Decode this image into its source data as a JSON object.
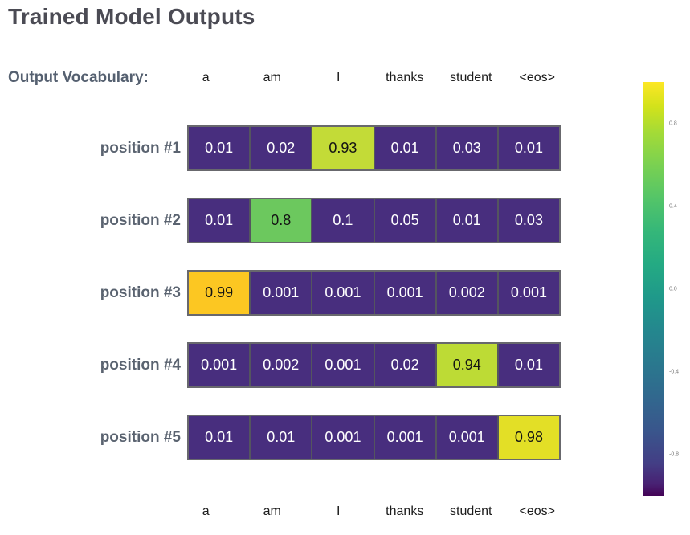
{
  "title": "Trained Model Outputs",
  "output_vocabulary_label": "Output Vocabulary:",
  "chart_data": {
    "type": "heatmap",
    "title": "Trained Model Outputs",
    "columns": [
      "a",
      "am",
      "I",
      "thanks",
      "student",
      "<eos>"
    ],
    "column_labels_shown": [
      "top",
      "bottom"
    ],
    "rows": [
      {
        "label": "position #1",
        "values": [
          0.01,
          0.02,
          0.93,
          0.01,
          0.03,
          0.01
        ],
        "display": [
          "0.01",
          "0.02",
          "0.93",
          "0.01",
          "0.03",
          "0.01"
        ],
        "highlight_index": 2,
        "highlight_color": "#c3db37"
      },
      {
        "label": "position #2",
        "values": [
          0.01,
          0.8,
          0.1,
          0.05,
          0.01,
          0.03
        ],
        "display": [
          "0.01",
          "0.8",
          "0.1",
          "0.05",
          "0.01",
          "0.03"
        ],
        "highlight_index": 1,
        "highlight_color": "#6cc85e"
      },
      {
        "label": "position #3",
        "values": [
          0.99,
          0.001,
          0.001,
          0.001,
          0.002,
          0.001
        ],
        "display": [
          "0.99",
          "0.001",
          "0.001",
          "0.001",
          "0.002",
          "0.001"
        ],
        "highlight_index": 0,
        "highlight_color": "#fcc722"
      },
      {
        "label": "position #4",
        "values": [
          0.001,
          0.002,
          0.001,
          0.02,
          0.94,
          0.01
        ],
        "display": [
          "0.001",
          "0.002",
          "0.001",
          "0.02",
          "0.94",
          "0.01"
        ],
        "highlight_index": 4,
        "highlight_color": "#bddb35"
      },
      {
        "label": "position #5",
        "values": [
          0.01,
          0.01,
          0.001,
          0.001,
          0.001,
          0.98
        ],
        "display": [
          "0.01",
          "0.01",
          "0.001",
          "0.001",
          "0.001",
          "0.98"
        ],
        "highlight_index": 5,
        "highlight_color": "#e3df26"
      }
    ],
    "colorbar": {
      "colormap": "viridis",
      "range": [
        -1,
        1
      ],
      "ticks": [
        {
          "label": "0.8",
          "pos": 10
        },
        {
          "label": "0.4",
          "pos": 30
        },
        {
          "label": "0.0",
          "pos": 50
        },
        {
          "label": "-0.4",
          "pos": 70
        },
        {
          "label": "-0.8",
          "pos": 90
        }
      ]
    },
    "colors": {
      "cell_default": "#482e7e",
      "cell_text": "#ffffff",
      "highlight_text": "#141414",
      "row_border": "#68686d",
      "cell_divider": "#54555f"
    },
    "legend_position": "right",
    "grid": false
  }
}
